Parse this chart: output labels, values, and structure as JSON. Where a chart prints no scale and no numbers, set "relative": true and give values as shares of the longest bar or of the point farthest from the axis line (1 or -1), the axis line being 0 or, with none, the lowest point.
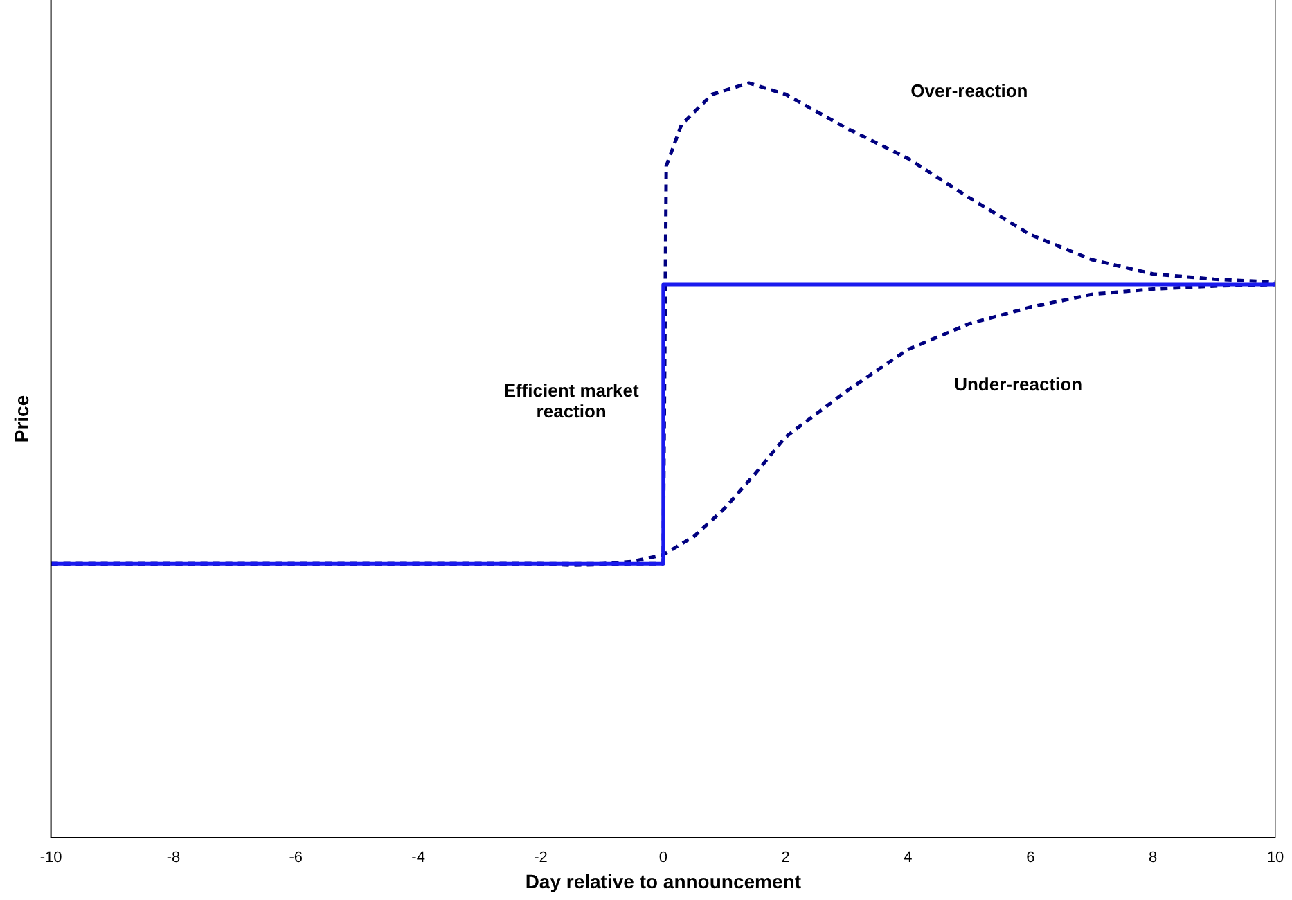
{
  "chart_data": {
    "type": "line",
    "xlabel": "Day relative to announcement",
    "ylabel": "Price",
    "relative": true,
    "xlim": [
      -10,
      10
    ],
    "xticks": [
      -10,
      -8,
      -6,
      -4,
      -2,
      0,
      2,
      4,
      6,
      8,
      10
    ],
    "grid": false,
    "legend": false,
    "marker": "none",
    "series": [
      {
        "name": "Efficient market reaction",
        "color": "#1a1aee",
        "line_style": "solid",
        "x": [
          -10,
          0,
          0,
          10
        ],
        "values": [
          0.363,
          0.363,
          0.733,
          0.733
        ]
      },
      {
        "name": "Over-reaction",
        "color": "#000080",
        "line_style": "dashed",
        "x": [
          -10,
          -2,
          -1.5,
          -0.5,
          0,
          0.05,
          0.3,
          0.8,
          1.4,
          2,
          3,
          4,
          5,
          6,
          7,
          8,
          9,
          10
        ],
        "values": [
          0.363,
          0.363,
          0.361,
          0.363,
          0.363,
          0.89,
          0.945,
          0.985,
          1,
          0.985,
          0.94,
          0.9,
          0.848,
          0.799,
          0.766,
          0.747,
          0.74,
          0.736
        ]
      },
      {
        "name": "Under-reaction",
        "color": "#000080",
        "line_style": "dashed",
        "x": [
          -10,
          -1,
          -0.5,
          0,
          0.5,
          1,
          1.5,
          2,
          3,
          4,
          5,
          6,
          7,
          8,
          9,
          10
        ],
        "values": [
          0.363,
          0.363,
          0.366,
          0.375,
          0.399,
          0.436,
          0.482,
          0.531,
          0.592,
          0.647,
          0.681,
          0.703,
          0.72,
          0.727,
          0.731,
          0.733
        ]
      }
    ]
  }
}
